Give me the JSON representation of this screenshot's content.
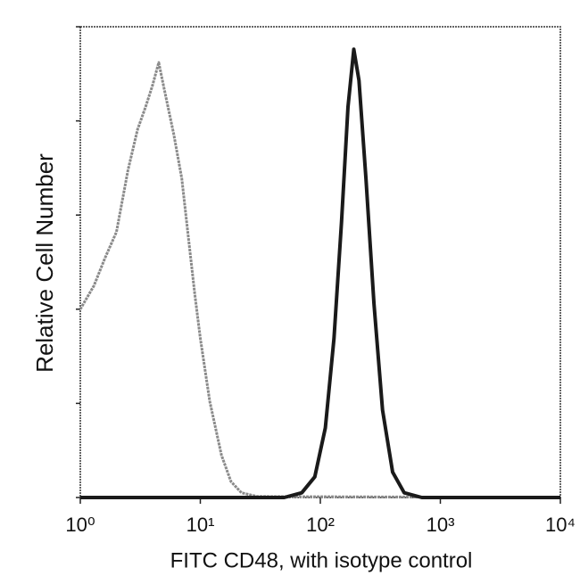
{
  "chart_data": {
    "type": "line",
    "x_label": "FITC CD48, with isotype control",
    "y_label": "Relative Cell Number",
    "x_log": true,
    "xlim": [
      1,
      10000
    ],
    "xticks": [
      {
        "value": 1,
        "label": "10⁰"
      },
      {
        "value": 10,
        "label": "10¹"
      },
      {
        "value": 100,
        "label": "10²"
      },
      {
        "value": 1000,
        "label": "10³"
      },
      {
        "value": 10000,
        "label": "10⁴"
      }
    ],
    "ylim": [
      0,
      5
    ],
    "yticks": [
      0,
      1,
      2,
      3,
      4,
      5
    ],
    "series": [
      {
        "color": "#8a8a8a",
        "x": [
          1,
          1.3,
          1.6,
          2,
          2.5,
          3,
          3.5,
          4,
          4.5,
          5,
          6,
          7,
          8,
          9,
          10,
          12,
          15,
          18,
          22,
          30,
          10000
        ],
        "values": [
          2.0,
          2.25,
          2.54,
          2.82,
          3.48,
          3.91,
          4.15,
          4.38,
          4.62,
          4.34,
          3.86,
          3.39,
          2.73,
          2.16,
          1.69,
          1.02,
          0.45,
          0.17,
          0.05,
          0.01,
          0
        ]
      },
      {
        "color": "#1a1a1a",
        "x": [
          1,
          50,
          70,
          90,
          110,
          130,
          150,
          170,
          190,
          210,
          240,
          280,
          330,
          400,
          500,
          700,
          10000
        ],
        "values": [
          0,
          0,
          0.05,
          0.22,
          0.74,
          1.69,
          2.92,
          4.15,
          4.76,
          4.43,
          3.39,
          2.06,
          0.93,
          0.27,
          0.05,
          0,
          0
        ]
      }
    ]
  }
}
